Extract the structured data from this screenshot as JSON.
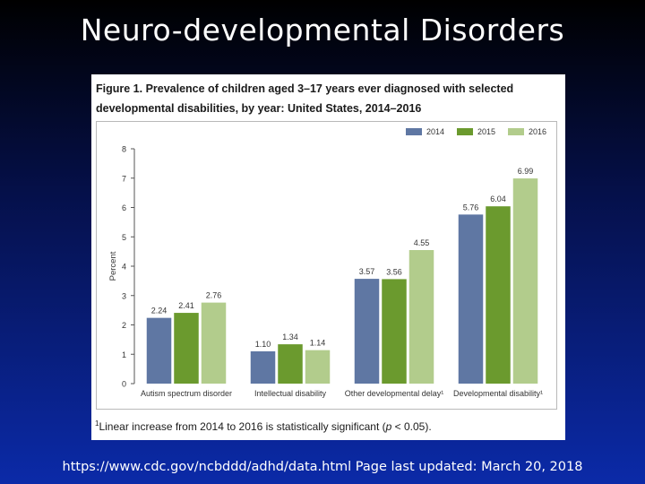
{
  "slide": {
    "title": "Neuro-developmental Disorders",
    "source": "https://www.cdc.gov/ncbddd/adhd/data.html Page last updated: March 20, 2018"
  },
  "figure": {
    "caption_line1": "Figure 1. Prevalence of children aged 3–17 years ever diagnosed with selected",
    "caption_line2": "developmental disabilities, by year: United States, 2014–2016",
    "footnote_mark": "1",
    "footnote_a": "Linear increase from 2014 to 2016 is statistically significant (",
    "footnote_p": "p",
    "footnote_b": " < 0.05)."
  },
  "chart_data": {
    "type": "bar",
    "title": "Prevalence of children aged 3–17 years ever diagnosed with selected developmental disabilities, by year: United States, 2014–2016",
    "xlabel": "",
    "ylabel": "Percent",
    "ylim": [
      0,
      8
    ],
    "yticks": [
      "0",
      "1",
      "2",
      "3",
      "4",
      "5",
      "6",
      "7",
      "8"
    ],
    "categories": [
      "Autism spectrum disorder",
      "Intellectual disability",
      "Other developmental delay¹",
      "Developmental disability¹"
    ],
    "series": [
      {
        "name": "2014",
        "color": "#5f77a3",
        "values": [
          2.24,
          1.1,
          3.57,
          5.76
        ],
        "labels": [
          "2.24",
          "1.10",
          "3.57",
          "5.76"
        ]
      },
      {
        "name": "2015",
        "color": "#6b9a2e",
        "values": [
          2.41,
          1.34,
          3.56,
          6.04
        ],
        "labels": [
          "2.41",
          "1.34",
          "3.56",
          "6.04"
        ]
      },
      {
        "name": "2016",
        "color": "#b2cc8c",
        "values": [
          2.76,
          1.14,
          4.55,
          6.99
        ],
        "labels": [
          "2.76",
          "1.14",
          "4.55",
          "6.99"
        ]
      }
    ],
    "legend_position": "top-right",
    "grid": false
  }
}
